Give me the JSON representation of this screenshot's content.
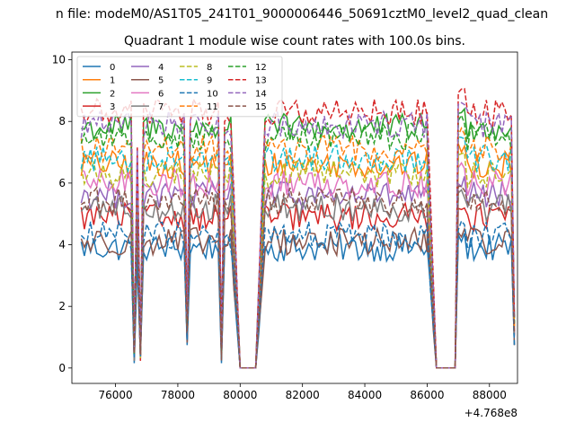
{
  "figure": {
    "suptitle": "n file: modeM0/AS1T05_241T01_9000006446_50691cztM0_level2_quad_clean",
    "title": "Quadrant 1 module wise count rates with 100.0s bins.",
    "offset_text": "+4.768e8"
  },
  "chart_data": {
    "type": "line",
    "title": "Quadrant 1 module wise count rates with 100.0s bins.",
    "xlabel": "",
    "ylabel": "",
    "x_offset": 476800000,
    "xlim": [
      74600,
      88900
    ],
    "ylim": [
      -0.5,
      10.25
    ],
    "x_ticks": [
      76000,
      78000,
      80000,
      82000,
      84000,
      86000,
      88000
    ],
    "x_tick_labels": [
      "76000",
      "78000",
      "80000",
      "82000",
      "84000",
      "86000",
      "88000"
    ],
    "y_ticks": [
      0,
      2,
      4,
      6,
      8,
      10
    ],
    "y_tick_labels": [
      "0",
      "2",
      "4",
      "6",
      "8",
      "10"
    ],
    "grid": false,
    "legend": {
      "placement": "top-left",
      "columns": 4
    },
    "segments": [
      {
        "x_start": 74900,
        "x_end": 76500,
        "shape": "plateau"
      },
      {
        "x_start": 76600,
        "x_end": 76600,
        "shape": "dip",
        "level": 0.07
      },
      {
        "x_start": 76700,
        "x_end": 76700,
        "shape": "peak",
        "level": 0.88
      },
      {
        "x_start": 76800,
        "x_end": 76800,
        "shape": "dip",
        "level": 0.07
      },
      {
        "x_start": 76900,
        "x_end": 78200,
        "shape": "plateau"
      },
      {
        "x_start": 78300,
        "x_end": 78300,
        "shape": "dip",
        "level": 0.2
      },
      {
        "x_start": 78400,
        "x_end": 79300,
        "shape": "plateau"
      },
      {
        "x_start": 79400,
        "x_end": 79400,
        "shape": "dip",
        "level": 0.07
      },
      {
        "x_start": 79500,
        "x_end": 79600,
        "shape": "peak",
        "level": 0.98
      },
      {
        "x_start": 79700,
        "x_end": 80000,
        "shape": "ramp_down"
      },
      {
        "x_start": 80000,
        "x_end": 80400,
        "shape": "zero"
      },
      {
        "x_start": 80500,
        "x_end": 80800,
        "shape": "ramp_up"
      },
      {
        "x_start": 80900,
        "x_end": 86000,
        "shape": "plateau"
      },
      {
        "x_start": 86000,
        "x_end": 86300,
        "shape": "ramp_down"
      },
      {
        "x_start": 86400,
        "x_end": 86900,
        "shape": "zero"
      },
      {
        "x_start": 87000,
        "x_end": 87200,
        "shape": "peak",
        "level": 1.08
      },
      {
        "x_start": 87300,
        "x_end": 88700,
        "shape": "plateau"
      },
      {
        "x_start": 88800,
        "x_end": 88800,
        "shape": "dip",
        "level": 0.2
      }
    ],
    "series": [
      {
        "name": "0",
        "color": "#1f77b4",
        "dash": "solid",
        "mean": 3.9
      },
      {
        "name": "1",
        "color": "#ff7f0e",
        "dash": "solid",
        "mean": 6.6
      },
      {
        "name": "2",
        "color": "#2ca02c",
        "dash": "solid",
        "mean": 7.8
      },
      {
        "name": "3",
        "color": "#d62728",
        "dash": "solid",
        "mean": 4.9
      },
      {
        "name": "4",
        "color": "#9467bd",
        "dash": "solid",
        "mean": 5.6
      },
      {
        "name": "5",
        "color": "#8c564b",
        "dash": "solid",
        "mean": 4.1
      },
      {
        "name": "6",
        "color": "#e377c2",
        "dash": "solid",
        "mean": 6.0
      },
      {
        "name": "7",
        "color": "#7f7f7f",
        "dash": "solid",
        "mean": 5.2
      },
      {
        "name": "8",
        "color": "#bcbd22",
        "dash": "dashed",
        "mean": 6.3
      },
      {
        "name": "9",
        "color": "#17becf",
        "dash": "dashed",
        "mean": 6.8
      },
      {
        "name": "10",
        "color": "#1f77b4",
        "dash": "dashed",
        "mean": 4.3
      },
      {
        "name": "11",
        "color": "#ff7f0e",
        "dash": "dashed",
        "mean": 7.1
      },
      {
        "name": "12",
        "color": "#2ca02c",
        "dash": "dashed",
        "mean": 7.5
      },
      {
        "name": "13",
        "color": "#d62728",
        "dash": "dashed",
        "mean": 8.3
      },
      {
        "name": "14",
        "color": "#9467bd",
        "dash": "dashed",
        "mean": 7.9
      },
      {
        "name": "15",
        "color": "#8c564b",
        "dash": "dashed",
        "mean": 5.4
      }
    ]
  }
}
